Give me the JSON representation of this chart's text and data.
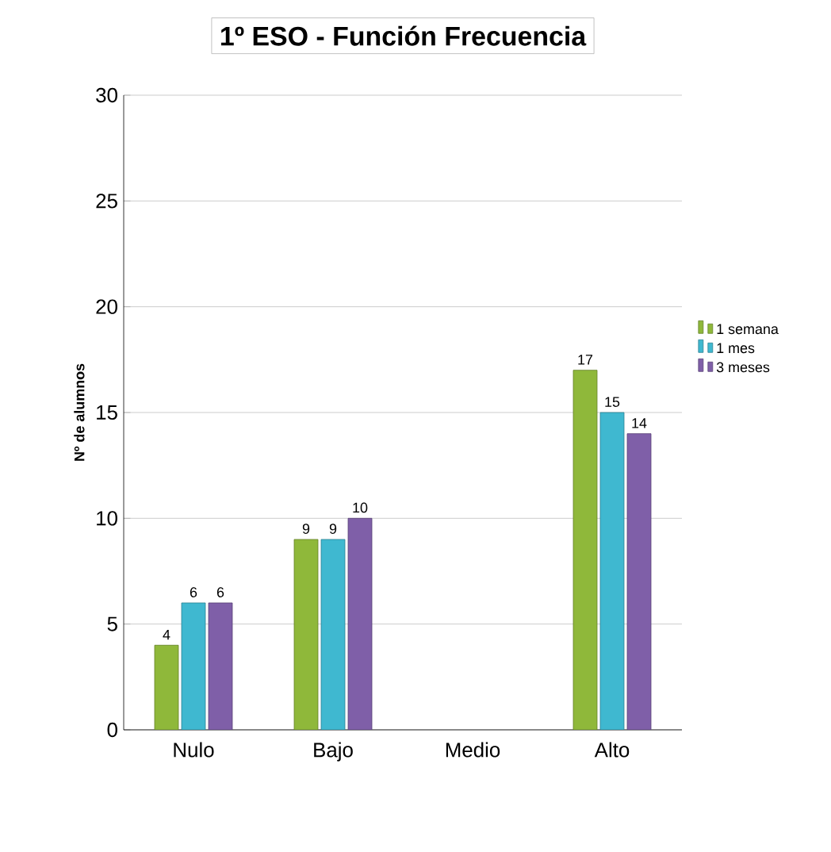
{
  "chart_data": {
    "type": "bar",
    "title": "1º ESO - Función  Frecuencia",
    "ylabel": "Nº de alumnos",
    "categories": [
      "Nulo",
      "Bajo",
      "Medio",
      "Alto"
    ],
    "series": [
      {
        "name": "1 semana",
        "color": "#8fb83a",
        "values": [
          4,
          9,
          null,
          17
        ]
      },
      {
        "name": "1 mes",
        "color": "#3fb8d0",
        "values": [
          6,
          9,
          null,
          15
        ]
      },
      {
        "name": "3 meses",
        "color": "#7f5fa8",
        "values": [
          6,
          10,
          null,
          14
        ]
      }
    ],
    "ylim": [
      0,
      30
    ],
    "yticks": [
      0,
      5,
      10,
      15,
      20,
      25,
      30
    ],
    "grid": "y",
    "legend": "right",
    "data_labels": true
  }
}
